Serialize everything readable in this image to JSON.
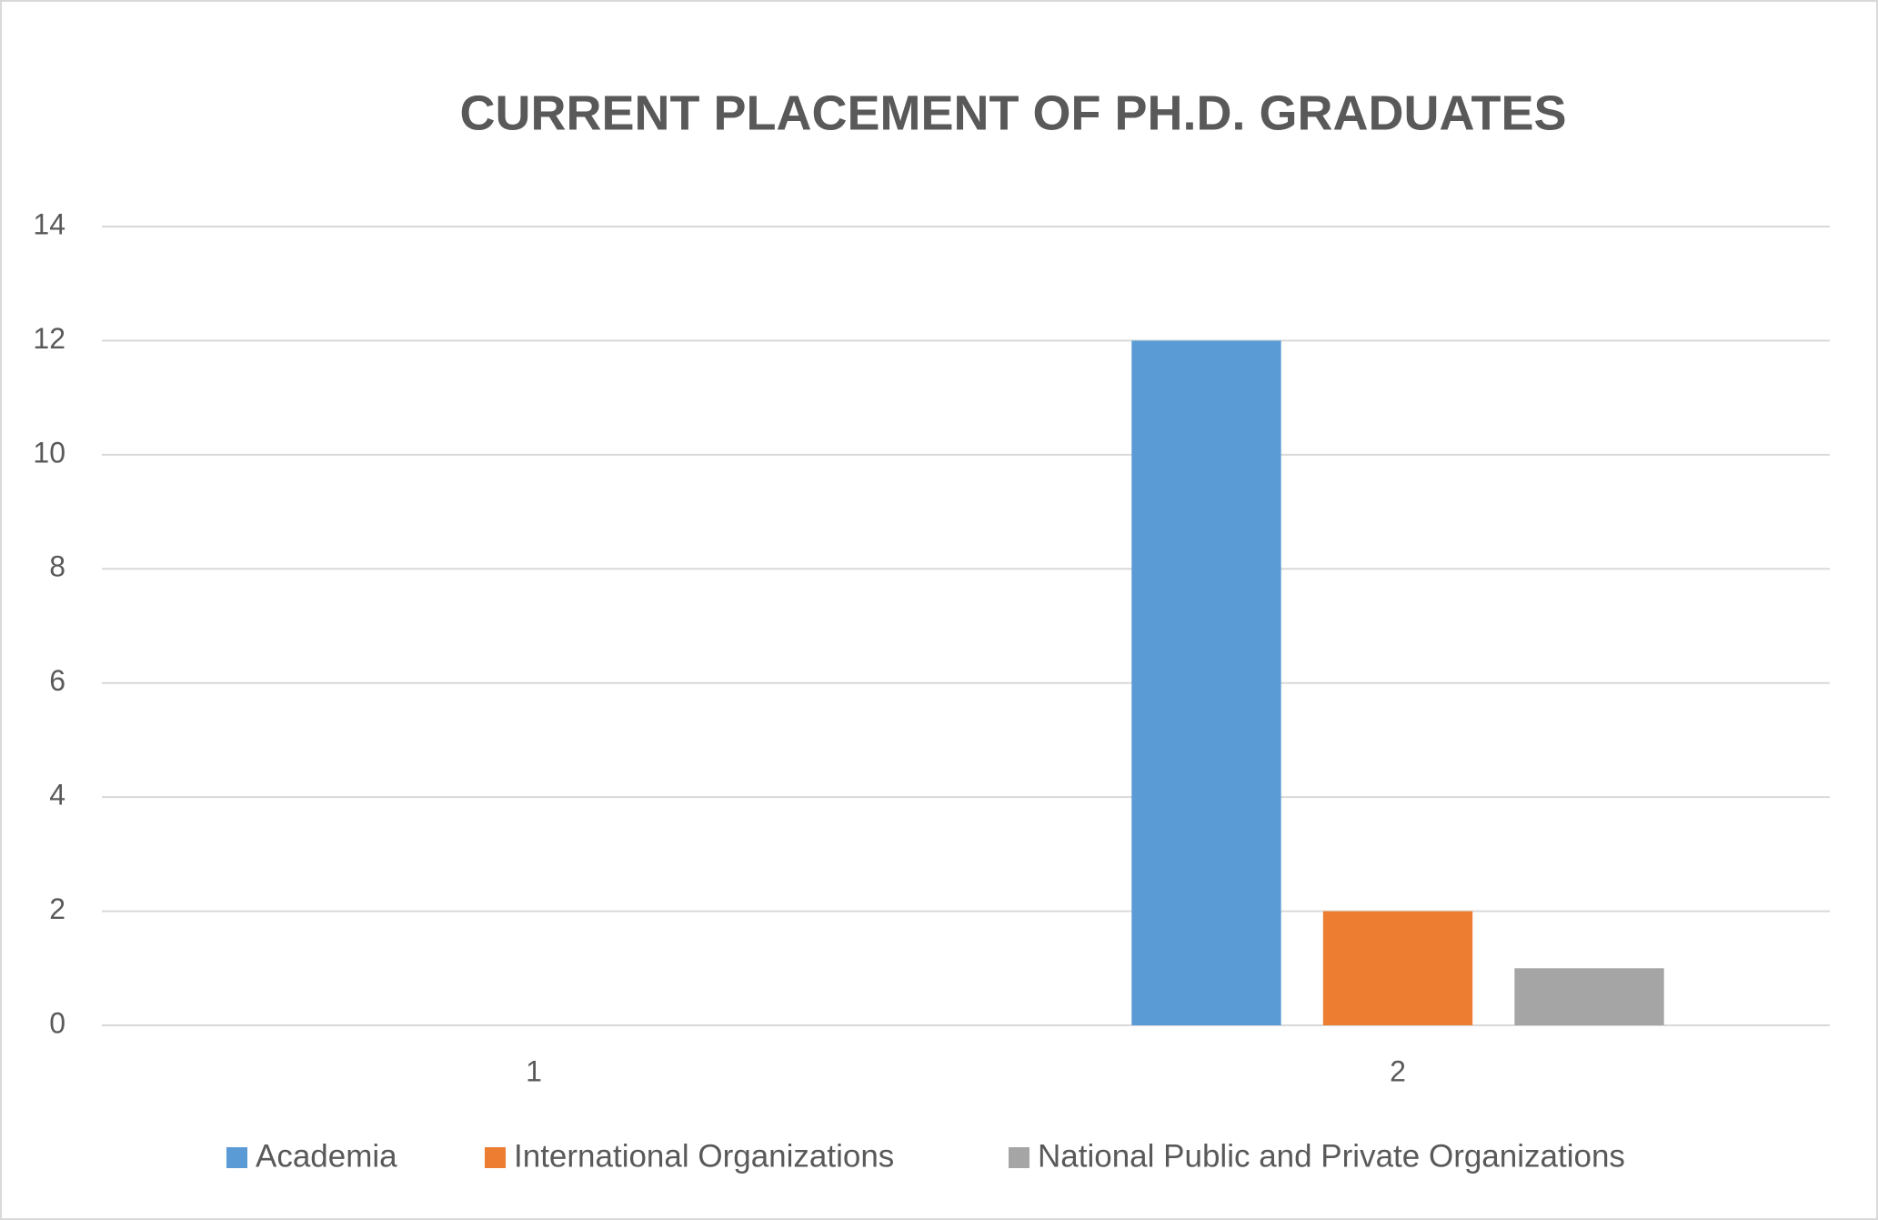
{
  "chart_data": {
    "type": "bar",
    "title": "CURRENT PLACEMENT OF PH.D. GRADUATES",
    "categories": [
      "1",
      "2"
    ],
    "series": [
      {
        "name": "Academia",
        "color": "#5b9bd5",
        "values": [
          null,
          12
        ]
      },
      {
        "name": "International Organizations",
        "color": "#ed7d31",
        "values": [
          null,
          2
        ]
      },
      {
        "name": "National Public and Private Organizations",
        "color": "#a5a5a5",
        "values": [
          null,
          1
        ]
      }
    ],
    "ylim": [
      0,
      14
    ],
    "yticks": [
      0,
      2,
      4,
      6,
      8,
      10,
      12,
      14
    ],
    "grid": true,
    "legend": "bottom"
  }
}
